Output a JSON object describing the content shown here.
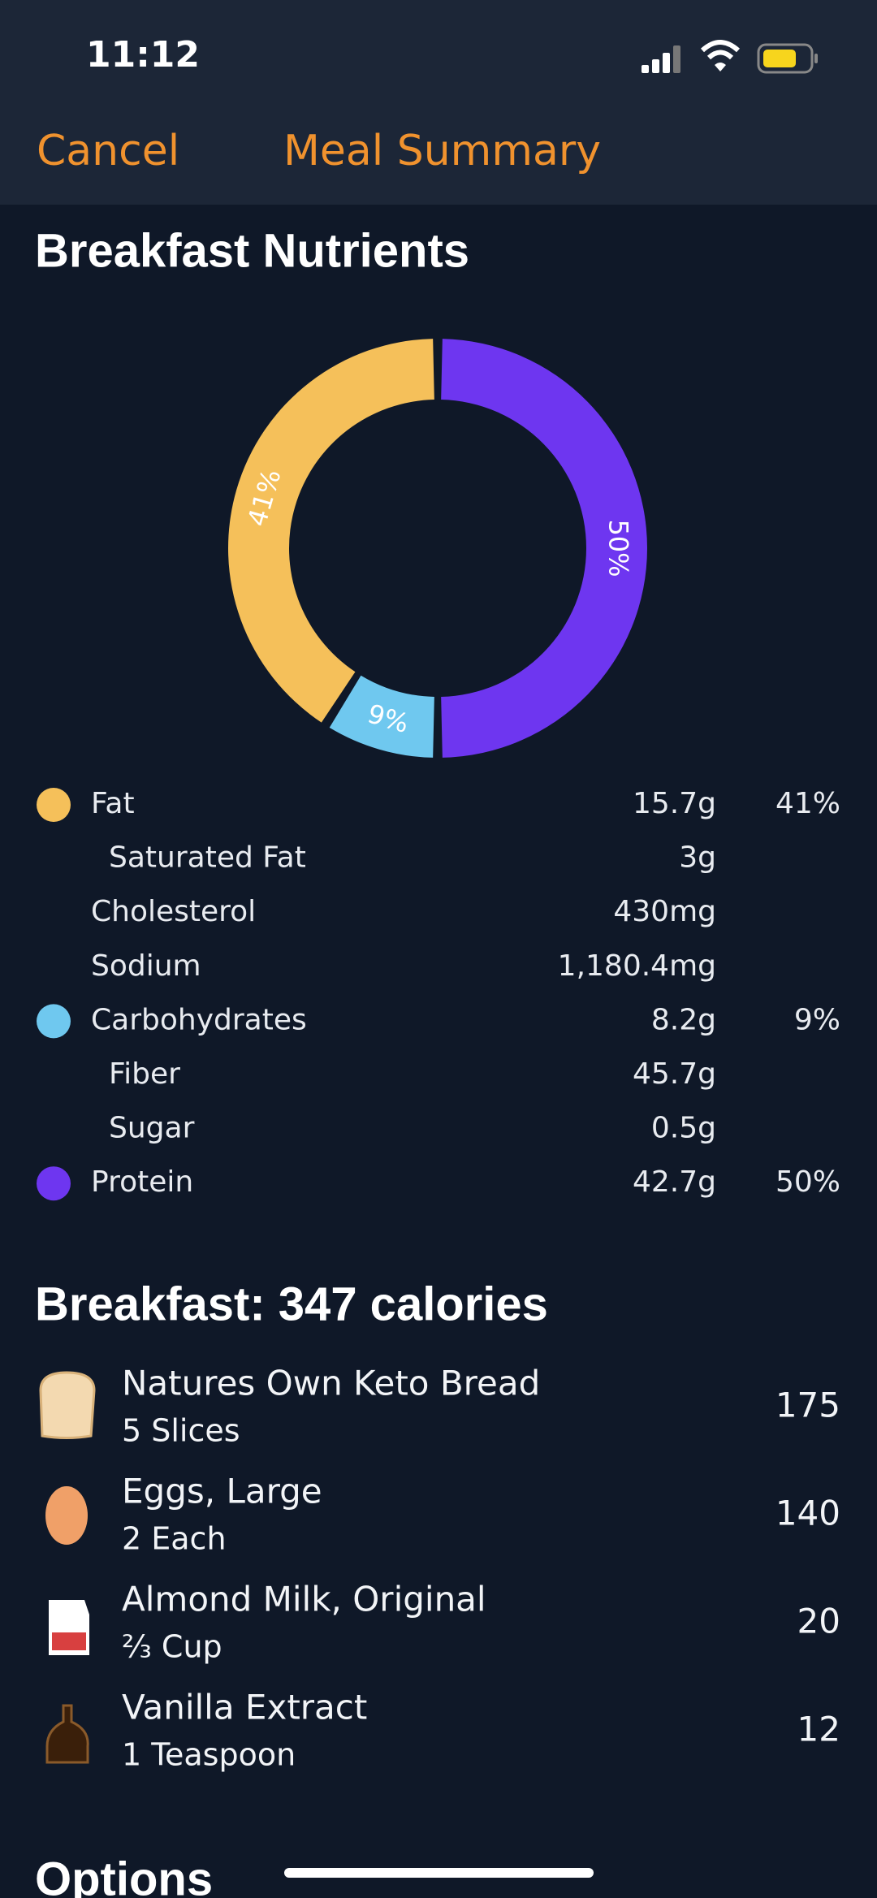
{
  "status_bar": {
    "time": "11:12"
  },
  "nav": {
    "cancel": "Cancel",
    "title": "Meal Summary"
  },
  "chart_data": {
    "type": "donut",
    "title": "Breakfast Nutrients",
    "categories": [
      "Fat",
      "Carbohydrates",
      "Protein"
    ],
    "values": [
      41,
      9,
      50
    ],
    "value_labels": [
      "41%",
      "9%",
      "50%"
    ],
    "colors": [
      "#f5c05a",
      "#6fc8ef",
      "#6e36f0"
    ]
  },
  "nutrients": {
    "rows": [
      {
        "name": "Fat",
        "amount": "15.7g",
        "percent": "41%",
        "color": "#f5c05a"
      },
      {
        "name": "Saturated Fat",
        "amount": "3g",
        "indent": true
      },
      {
        "name": "Cholesterol",
        "amount": "430mg"
      },
      {
        "name": "Sodium",
        "amount": "1,180.4mg"
      },
      {
        "name": "Carbohydrates",
        "amount": "8.2g",
        "percent": "9%",
        "color": "#6fc8ef"
      },
      {
        "name": "Fiber",
        "amount": "45.7g",
        "indent": true
      },
      {
        "name": "Sugar",
        "amount": "0.5g",
        "indent": true
      },
      {
        "name": "Protein",
        "amount": "42.7g",
        "percent": "50%",
        "color": "#6e36f0"
      }
    ]
  },
  "meal": {
    "title": "Breakfast: 347 calories",
    "items": [
      {
        "name": "Natures Own Keto Bread",
        "quantity": "5 Slices",
        "calories": 175
      },
      {
        "name": "Eggs, Large",
        "quantity": "2 Each",
        "calories": 140
      },
      {
        "name": "Almond Milk, Original",
        "quantity": "⅔ Cup",
        "calories": 20
      },
      {
        "name": "Vanilla Extract",
        "quantity": "1 Teaspoon",
        "calories": 12
      }
    ]
  },
  "options": {
    "title": "Options"
  }
}
